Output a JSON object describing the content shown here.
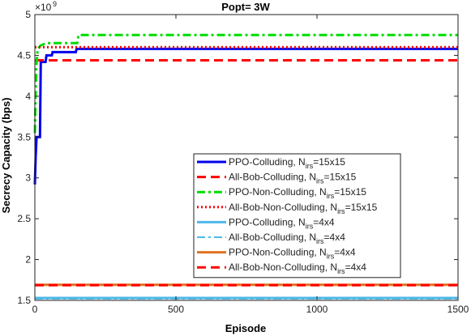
{
  "chart_data": {
    "type": "line",
    "title": "Popt= 3W",
    "xlabel": "Episode",
    "ylabel": "Secrecy Capacity (bps)",
    "y_exponent_label": "×10",
    "y_exponent_power": "9",
    "xlim": [
      0,
      1500
    ],
    "ylim": [
      1.5,
      5
    ],
    "xticks": [
      0,
      500,
      1000,
      1500
    ],
    "yticks": [
      1.5,
      2,
      2.5,
      3,
      3.5,
      4,
      4.5,
      5
    ],
    "grid": false,
    "legend_placement": "center-right",
    "series": [
      {
        "name": "PPO-Colluding, N_irs=15x15",
        "legend_main": "PPO-Colluding, N",
        "legend_sub": "irs",
        "legend_tail": "=15x15",
        "color": "#0000ee",
        "dash": "solid",
        "width": 3,
        "points": [
          [
            0,
            2.92
          ],
          [
            3,
            3.26
          ],
          [
            6,
            3.5
          ],
          [
            18,
            3.5
          ],
          [
            21,
            4.42
          ],
          [
            38,
            4.42
          ],
          [
            41,
            4.5
          ],
          [
            60,
            4.5
          ],
          [
            63,
            4.54
          ],
          [
            145,
            4.54
          ],
          [
            148,
            4.58
          ],
          [
            1500,
            4.58
          ]
        ]
      },
      {
        "name": "All-Bob-Colluding, N_irs=15x15",
        "legend_main": "All-Bob-Colluding, N",
        "legend_sub": "irs",
        "legend_tail": "=15x15",
        "color": "#ff0000",
        "dash": "dashed",
        "width": 3,
        "points": [
          [
            0,
            4.44
          ],
          [
            1500,
            4.44
          ]
        ]
      },
      {
        "name": "PPO-Non-Colluding, N_irs=15x15",
        "legend_main": "PPO-Non-Colluding, N",
        "legend_sub": "irs",
        "legend_tail": "=15x15",
        "color": "#00dd00",
        "dash": "dashdot",
        "width": 3,
        "points": [
          [
            0,
            3.55
          ],
          [
            5,
            4.35
          ],
          [
            10,
            4.58
          ],
          [
            20,
            4.62
          ],
          [
            40,
            4.65
          ],
          [
            150,
            4.65
          ],
          [
            155,
            4.75
          ],
          [
            1500,
            4.75
          ]
        ]
      },
      {
        "name": "All-Bob-Non-Colluding, N_irs=15x15",
        "legend_main": "All-Bob-Non-Colluding, N",
        "legend_sub": "irs",
        "legend_tail": "=15x15",
        "color": "#ff0000",
        "dash": "dotted",
        "width": 3,
        "points": [
          [
            0,
            4.6
          ],
          [
            1500,
            4.6
          ]
        ]
      },
      {
        "name": "PPO-Colluding, N_irs=4x4",
        "legend_main": "PPO-Colluding, N",
        "legend_sub": "irs",
        "legend_tail": "=4x4",
        "color": "#4db8e8",
        "dash": "solid",
        "width": 3,
        "points": [
          [
            0,
            1.53
          ],
          [
            1500,
            1.53
          ]
        ]
      },
      {
        "name": "All-Bob-Colluding, N_irs=4x4",
        "legend_main": "All-Bob-Colluding, N",
        "legend_sub": "irs",
        "legend_tail": "=4x4",
        "color": "#4db8e8",
        "dash": "dashdot",
        "width": 2,
        "points": [
          [
            0,
            1.52
          ],
          [
            1500,
            1.52
          ]
        ]
      },
      {
        "name": "PPO-Non-Colluding, N_irs=4x4",
        "legend_main": "PPO-Non-Colluding, N",
        "legend_sub": "irs",
        "legend_tail": "=4x4",
        "color": "#e07020",
        "dash": "solid",
        "width": 3,
        "points": [
          [
            0,
            1.69
          ],
          [
            1500,
            1.69
          ]
        ]
      },
      {
        "name": "All-Bob-Non-Colluding, N_irs=4x4",
        "legend_main": "All-Bob-Non-Colluding, N",
        "legend_sub": "irs",
        "legend_tail": "=4x4",
        "color": "#ff0000",
        "dash": "dashed",
        "width": 3,
        "points": [
          [
            0,
            1.685
          ],
          [
            1500,
            1.685
          ]
        ]
      }
    ]
  }
}
